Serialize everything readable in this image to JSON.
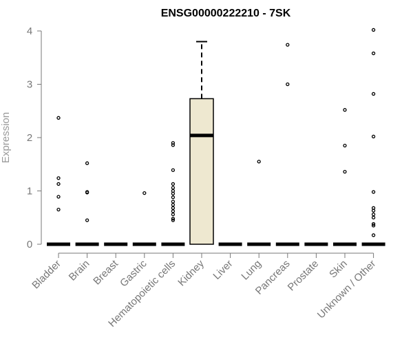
{
  "chart_data": {
    "type": "box",
    "title": "ENSG00000222210 - 7SK",
    "xlabel": "",
    "ylabel": "Expression",
    "ylim": [
      0,
      4
    ],
    "yticks": [
      0,
      1,
      2,
      3,
      4
    ],
    "grid": false,
    "colors": {
      "box_fill": "#EEE8D0",
      "stroke": "#000000",
      "axis": "#777777"
    },
    "categories": [
      "Bladder",
      "Brain",
      "Breast",
      "Gastric",
      "Hematopoietic cells",
      "Kidney",
      "Liver",
      "Lung",
      "Pancreas",
      "Prostate",
      "Skin",
      "Unknown / Other"
    ],
    "boxes": [
      {
        "category": "Bladder",
        "q1": 0,
        "median": 0,
        "q3": 0,
        "whisker_low": 0,
        "whisker_high": 0,
        "outliers": [
          2.37,
          1.24,
          1.13,
          0.89,
          0.65
        ]
      },
      {
        "category": "Brain",
        "q1": 0,
        "median": 0,
        "q3": 0,
        "whisker_low": 0,
        "whisker_high": 0,
        "outliers": [
          1.52,
          0.98,
          0.97,
          0.45
        ]
      },
      {
        "category": "Breast",
        "q1": 0,
        "median": 0,
        "q3": 0,
        "whisker_low": 0,
        "whisker_high": 0,
        "outliers": []
      },
      {
        "category": "Gastric",
        "q1": 0,
        "median": 0,
        "q3": 0,
        "whisker_low": 0,
        "whisker_high": 0,
        "outliers": [
          0.96
        ]
      },
      {
        "category": "Hematopoietic cells",
        "q1": 0,
        "median": 0,
        "q3": 0,
        "whisker_low": 0,
        "whisker_high": 0,
        "outliers": [
          1.9,
          1.86,
          1.39,
          1.13,
          1.06,
          1.0,
          0.95,
          0.88,
          0.8,
          0.74,
          0.68,
          0.62,
          0.56,
          0.48,
          0.45
        ]
      },
      {
        "category": "Kidney",
        "q1": 0,
        "median": 2.04,
        "q3": 2.73,
        "whisker_low": 0,
        "whisker_high": 3.8,
        "outliers": []
      },
      {
        "category": "Liver",
        "q1": 0,
        "median": 0,
        "q3": 0,
        "whisker_low": 0,
        "whisker_high": 0,
        "outliers": []
      },
      {
        "category": "Lung",
        "q1": 0,
        "median": 0,
        "q3": 0,
        "whisker_low": 0,
        "whisker_high": 0,
        "outliers": [
          1.55
        ]
      },
      {
        "category": "Pancreas",
        "q1": 0,
        "median": 0,
        "q3": 0,
        "whisker_low": 0,
        "whisker_high": 0,
        "outliers": [
          3.74,
          3.0
        ]
      },
      {
        "category": "Prostate",
        "q1": 0,
        "median": 0,
        "q3": 0,
        "whisker_low": 0,
        "whisker_high": 0,
        "outliers": []
      },
      {
        "category": "Skin",
        "q1": 0,
        "median": 0,
        "q3": 0,
        "whisker_low": 0,
        "whisker_high": 0,
        "outliers": [
          2.52,
          1.85,
          1.36
        ]
      },
      {
        "category": "Unknown / Other",
        "q1": 0,
        "median": 0,
        "q3": 0,
        "whisker_low": 0,
        "whisker_high": 0,
        "outliers": [
          4.02,
          3.58,
          2.82,
          2.02,
          0.98,
          0.68,
          0.63,
          0.56,
          0.5,
          0.38,
          0.35,
          0.17
        ]
      }
    ]
  }
}
